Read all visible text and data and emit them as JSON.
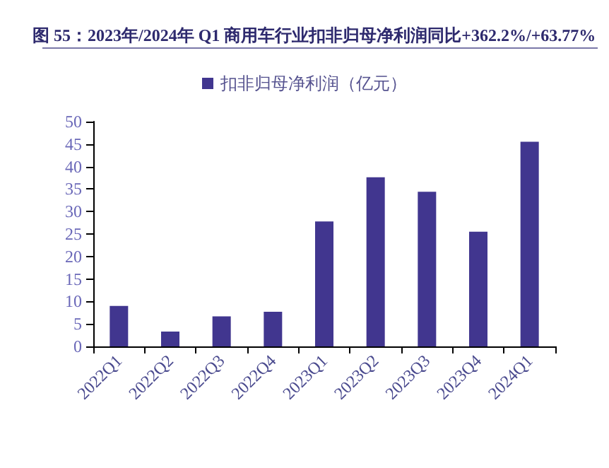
{
  "chart_data": {
    "type": "bar",
    "title": "图 55：2023年/2024年 Q1 商用车行业扣非归母净利润同比+362.2%/+63.77%",
    "categories": [
      "2022Q1",
      "2022Q2",
      "2022Q3",
      "2022Q4",
      "2023Q1",
      "2023Q2",
      "2023Q3",
      "2023Q4",
      "2024Q1"
    ],
    "series": [
      {
        "name": "扣非归母净利润（亿元）",
        "color": "#41368f",
        "values": [
          9.0,
          3.3,
          6.7,
          7.7,
          27.8,
          37.6,
          34.4,
          25.5,
          45.5
        ]
      }
    ],
    "ylim": [
      0,
      50
    ],
    "yticks": [
      0,
      5,
      10,
      15,
      20,
      25,
      30,
      35,
      40,
      45,
      50
    ],
    "grid": false,
    "legend": "top"
  }
}
